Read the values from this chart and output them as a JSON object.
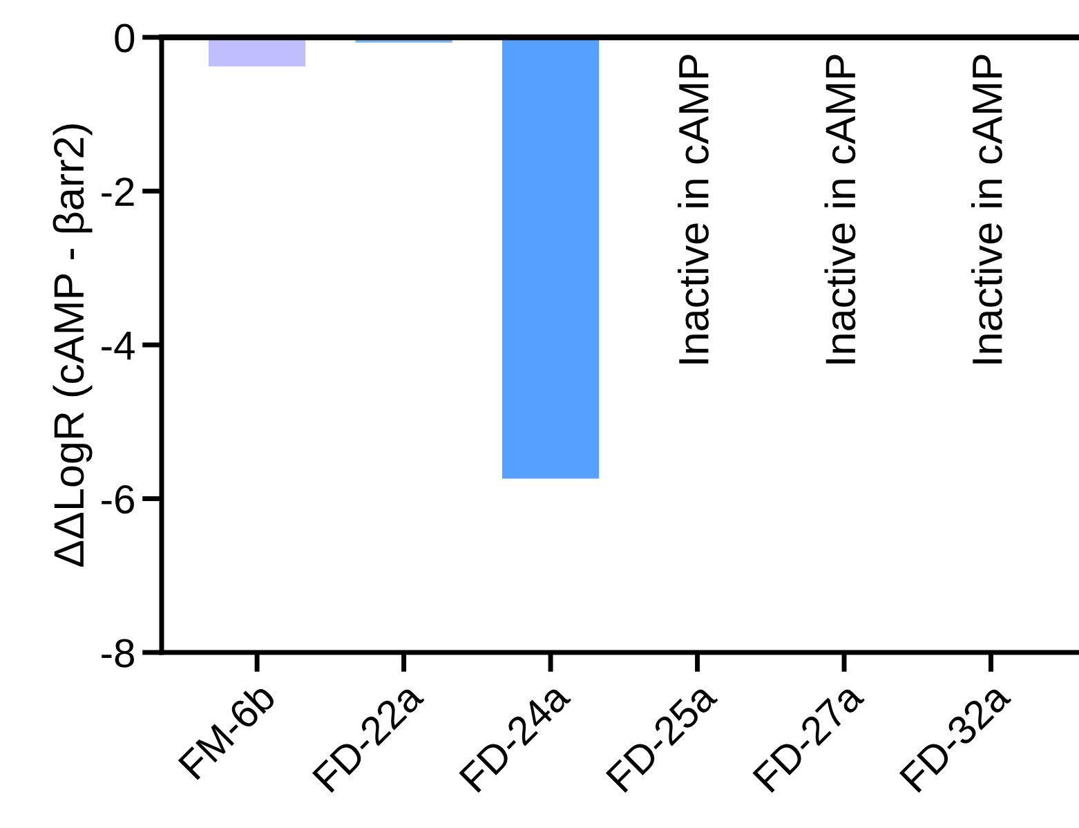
{
  "chart_data": {
    "type": "bar",
    "ylabel": "ΔΔLogR (cAMP - βarr2)",
    "categories": [
      "FM-6b",
      "FD-22a",
      "FD-24a",
      "FD-25a",
      "FD-27a",
      "FD-32a"
    ],
    "values": [
      -0.38,
      -0.07,
      -5.74,
      null,
      null,
      null
    ],
    "colors": [
      "#c0beff",
      "#80b4f4",
      "#56a0ff",
      null,
      null,
      null
    ],
    "ylim": [
      -8,
      0
    ],
    "yticks": [
      {
        "value": -8,
        "label": "-8"
      },
      {
        "value": -6,
        "label": "-6"
      },
      {
        "value": -4,
        "label": "-4"
      },
      {
        "value": -2,
        "label": "-2"
      },
      0
    ],
    "ref_lines": [
      {
        "axis": "y",
        "value": 0,
        "color": "#000000"
      }
    ],
    "annotations": [
      "Inactive in cAMP",
      "Inactive in cAMP",
      "Inactive in cAMP"
    ],
    "grid": false,
    "legend": false
  }
}
